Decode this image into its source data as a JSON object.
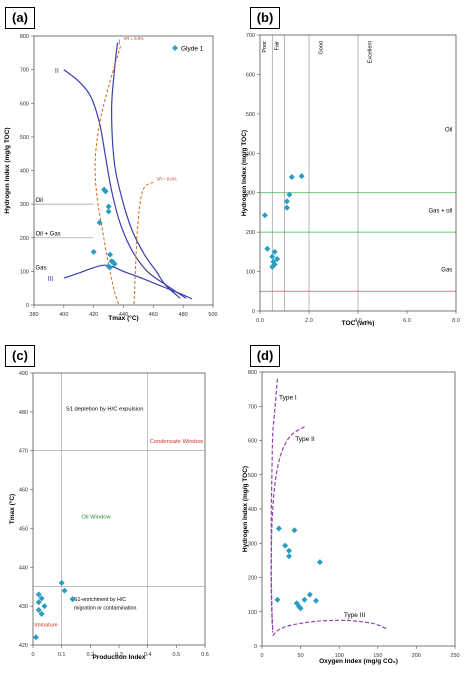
{
  "panels": [
    {
      "label": "(a)"
    },
    {
      "label": "(b)"
    },
    {
      "label": "(c)"
    },
    {
      "label": "(d)"
    }
  ],
  "chart_data": [
    {
      "type": "scatter",
      "xlabel": "Tmax (°C)",
      "ylabel": "Hydrogen Index (mg/g TOC)",
      "xlim": [
        380,
        500
      ],
      "ylim": [
        0,
        800
      ],
      "xticks": [
        380,
        400,
        420,
        440,
        460,
        480,
        500
      ],
      "yticks": [
        0,
        100,
        200,
        300,
        400,
        500,
        600,
        700,
        800
      ],
      "legend": {
        "label": "Glyde 1",
        "position": "top-right"
      },
      "series": [
        {
          "name": "Glyde 1",
          "color": "#2a9dc0",
          "points": [
            [
              427,
              343
            ],
            [
              428,
              338
            ],
            [
              430,
              293
            ],
            [
              430,
              278
            ],
            [
              424,
              245
            ],
            [
              420,
              158
            ],
            [
              431,
              150
            ],
            [
              432,
              130
            ],
            [
              433,
              128
            ],
            [
              434,
              122
            ],
            [
              430,
              115
            ],
            [
              431,
              112
            ]
          ]
        }
      ],
      "annotations": [
        "I",
        "II",
        "III",
        "Oil",
        "Oil + Gas",
        "Gas",
        "VR = 0.6%",
        "VR = 0.8%"
      ],
      "curves": {
        "type1": [
          [
            436,
            780
          ],
          [
            434,
            700
          ],
          [
            432,
            580
          ],
          [
            434,
            420
          ],
          [
            440,
            300
          ],
          [
            446,
            220
          ],
          [
            454,
            150
          ],
          [
            462,
            100
          ],
          [
            468,
            60
          ],
          [
            478,
            20
          ]
        ],
        "type2": [
          [
            400,
            700
          ],
          [
            410,
            665
          ],
          [
            418,
            620
          ],
          [
            424,
            540
          ],
          [
            428,
            440
          ],
          [
            432,
            340
          ],
          [
            438,
            240
          ],
          [
            446,
            160
          ],
          [
            456,
            100
          ],
          [
            470,
            55
          ],
          [
            482,
            20
          ]
        ],
        "type3": [
          [
            400,
            80
          ],
          [
            410,
            95
          ],
          [
            418,
            108
          ],
          [
            426,
            118
          ],
          [
            432,
            115
          ],
          [
            440,
            100
          ],
          [
            452,
            80
          ],
          [
            466,
            55
          ],
          [
            480,
            30
          ],
          [
            486,
            18
          ]
        ],
        "vr06": [
          [
            438,
            770
          ],
          [
            430,
            650
          ],
          [
            424,
            540
          ],
          [
            421,
            430
          ],
          [
            422,
            330
          ],
          [
            426,
            220
          ],
          [
            430,
            120
          ],
          [
            434,
            40
          ],
          [
            437,
            0
          ]
        ],
        "vr08": [
          [
            460,
            365
          ],
          [
            454,
            350
          ],
          [
            451,
            300
          ],
          [
            449,
            200
          ],
          [
            448,
            100
          ],
          [
            447,
            0
          ]
        ],
        "oil_line": [
          [
            380,
            300
          ],
          [
            420,
            300
          ]
        ],
        "oilgas_line": [
          [
            380,
            200
          ],
          [
            420,
            200
          ]
        ]
      }
    },
    {
      "type": "scatter",
      "xlabel": "TOC (wt%)",
      "ylabel": "Hydrogen Index (mg/g TOC)",
      "xlim": [
        0,
        8
      ],
      "ylim": [
        0,
        700
      ],
      "xticks": [
        0.0,
        2.0,
        4.0,
        6.0,
        8.0
      ],
      "yticks": [
        0,
        100,
        200,
        300,
        400,
        500,
        600,
        700
      ],
      "zones": [
        "Poor",
        "Fair",
        "Good",
        "Excellent",
        "Oil",
        "Gas + oil",
        "Gas"
      ],
      "zone_bounds_toc": [
        0.5,
        1.0,
        2.0,
        4.0
      ],
      "zone_bounds_hi": [
        {
          "value": 300,
          "color": "#3cb44b"
        },
        {
          "value": 200,
          "color": "#3cb44b"
        },
        {
          "value": 50,
          "color": "#e05555"
        }
      ],
      "points": [
        [
          1.3,
          340
        ],
        [
          1.7,
          342
        ],
        [
          1.2,
          295
        ],
        [
          1.1,
          278
        ],
        [
          1.1,
          262
        ],
        [
          0.2,
          243
        ],
        [
          0.3,
          158
        ],
        [
          0.6,
          150
        ],
        [
          0.5,
          138
        ],
        [
          0.7,
          132
        ],
        [
          0.55,
          125
        ],
        [
          0.6,
          118
        ],
        [
          0.5,
          112
        ]
      ]
    },
    {
      "type": "scatter",
      "xlabel": "Production Index",
      "ylabel": "Tmax (°C)",
      "xlim": [
        0,
        0.6
      ],
      "ylim": [
        420,
        490
      ],
      "xticks": [
        0,
        0.1,
        0.2,
        0.3,
        0.4,
        0.5,
        0.6
      ],
      "yticks": [
        420,
        430,
        440,
        450,
        460,
        470,
        480,
        490
      ],
      "zones": [
        "S1 depletion by H/C expulsion",
        "Condensate Window",
        "Oil Window",
        "S1-enrichment by H/C migration or contamination",
        "Immature"
      ],
      "zone_lines": {
        "pi": [
          0.1,
          0.4
        ],
        "tmax": [
          435,
          470
        ]
      },
      "points": [
        [
          0.1,
          436
        ],
        [
          0.11,
          434
        ],
        [
          0.02,
          433
        ],
        [
          0.03,
          432
        ],
        [
          0.02,
          431
        ],
        [
          0.04,
          430
        ],
        [
          0.02,
          429
        ],
        [
          0.03,
          428
        ],
        [
          0.01,
          422
        ]
      ]
    },
    {
      "type": "scatter",
      "xlabel": "Oxygen Index (mg/g CO₂)",
      "ylabel": "Hydrogen Index (mg/g TOC)",
      "xlim": [
        0,
        250
      ],
      "ylim": [
        0,
        800
      ],
      "xticks": [
        0,
        50,
        100,
        150,
        200,
        250
      ],
      "yticks": [
        0,
        100,
        200,
        300,
        400,
        500,
        600,
        700,
        800
      ],
      "annotations": [
        "Type I",
        "Type II",
        "Type III"
      ],
      "curves": {
        "type1": [
          [
            20,
            780
          ],
          [
            17,
            700
          ],
          [
            14,
            620
          ],
          [
            13,
            520
          ],
          [
            12,
            400
          ],
          [
            12,
            300
          ],
          [
            12,
            200
          ],
          [
            13,
            100
          ],
          [
            14,
            40
          ]
        ],
        "type2": [
          [
            55,
            640
          ],
          [
            40,
            620
          ],
          [
            30,
            590
          ],
          [
            22,
            540
          ],
          [
            16,
            460
          ],
          [
            13,
            360
          ],
          [
            12,
            260
          ],
          [
            12,
            160
          ],
          [
            13,
            80
          ],
          [
            14,
            40
          ]
        ],
        "type3": [
          [
            14,
            30
          ],
          [
            22,
            48
          ],
          [
            40,
            62
          ],
          [
            70,
            72
          ],
          [
            100,
            75
          ],
          [
            120,
            73
          ],
          [
            145,
            65
          ],
          [
            162,
            50
          ]
        ]
      },
      "points": [
        [
          22,
          343
        ],
        [
          42,
          338
        ],
        [
          30,
          293
        ],
        [
          35,
          278
        ],
        [
          35,
          262
        ],
        [
          75,
          245
        ],
        [
          62,
          150
        ],
        [
          20,
          135
        ],
        [
          55,
          135
        ],
        [
          70,
          132
        ],
        [
          45,
          125
        ],
        [
          48,
          115
        ],
        [
          50,
          110
        ]
      ]
    }
  ]
}
